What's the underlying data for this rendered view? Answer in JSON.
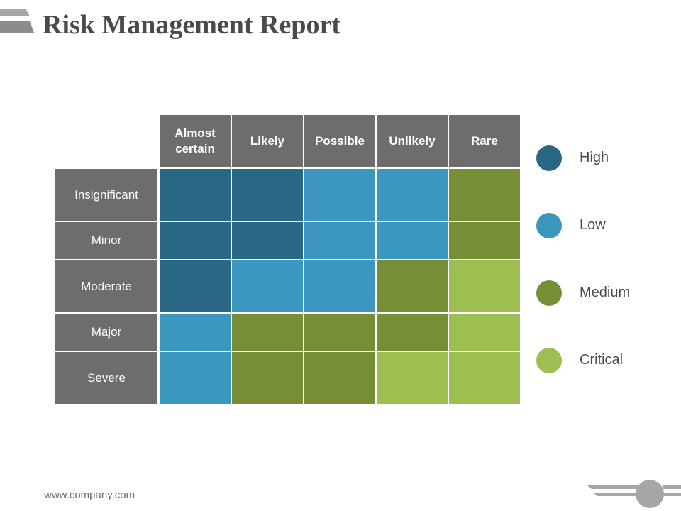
{
  "title": "Risk Management Report",
  "footer_url": "www.company.com",
  "matrix": {
    "columns": [
      "Almost certain",
      "Likely",
      "Possible",
      "Unlikely",
      "Rare"
    ],
    "rows": [
      {
        "label": "Insignificant",
        "cells": [
          "High",
          "High",
          "Low",
          "Low",
          "Medium"
        ]
      },
      {
        "label": "Minor",
        "cells": [
          "High",
          "High",
          "Low",
          "Low",
          "Medium"
        ]
      },
      {
        "label": "Moderate",
        "cells": [
          "High",
          "Low",
          "Low",
          "Medium",
          "Critical"
        ]
      },
      {
        "label": "Major",
        "cells": [
          "Low",
          "Medium",
          "Medium",
          "Medium",
          "Critical"
        ]
      },
      {
        "label": "Severe",
        "cells": [
          "Low",
          "Medium",
          "Medium",
          "Critical",
          "Critical"
        ]
      }
    ]
  },
  "legend": [
    {
      "label": "High",
      "color": "#296884"
    },
    {
      "label": "Low",
      "color": "#3b97bd"
    },
    {
      "label": "Medium",
      "color": "#768f37"
    },
    {
      "label": "Critical",
      "color": "#9dbf52"
    }
  ],
  "colors": {
    "header_bg": "#6d6d6d",
    "title_text": "#4a4a4a"
  }
}
